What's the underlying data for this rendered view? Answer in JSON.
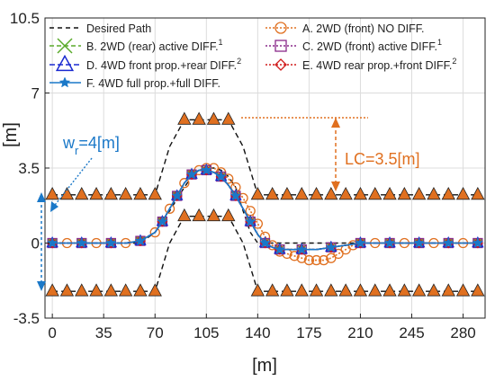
{
  "chart_data": {
    "type": "line",
    "xlabel": "[m]",
    "ylabel": "[m]",
    "xlim": [
      -5,
      295
    ],
    "ylim": [
      -3.5,
      10.5
    ],
    "xticks": [
      "0",
      "35",
      "70",
      "105",
      "140",
      "175",
      "210",
      "245",
      "280"
    ],
    "yticks": [
      "-3.5",
      "0",
      "3.5",
      "7",
      "10.5"
    ],
    "grid": true,
    "legend_position": "top",
    "cones": {
      "color": "#e07020",
      "upper": {
        "x": [
          0,
          10,
          20,
          30,
          40,
          50,
          60,
          70,
          90,
          100,
          110,
          120,
          140,
          150,
          160,
          170,
          180,
          190,
          200,
          210,
          220,
          230,
          240,
          250,
          260,
          270,
          280,
          290
        ],
        "y": [
          2.25,
          2.25,
          2.25,
          2.25,
          2.25,
          2.25,
          2.25,
          2.25,
          5.75,
          5.75,
          5.75,
          5.75,
          2.25,
          2.25,
          2.25,
          2.25,
          2.25,
          2.25,
          2.25,
          2.25,
          2.25,
          2.25,
          2.25,
          2.25,
          2.25,
          2.25,
          2.25,
          2.25
        ]
      },
      "lower": {
        "x": [
          0,
          10,
          20,
          30,
          40,
          50,
          60,
          70,
          90,
          100,
          110,
          120,
          140,
          150,
          160,
          170,
          180,
          190,
          200,
          210,
          220,
          230,
          240,
          250,
          260,
          270,
          280,
          290
        ],
        "y": [
          -2.25,
          -2.25,
          -2.25,
          -2.25,
          -2.25,
          -2.25,
          -2.25,
          -2.25,
          1.25,
          1.25,
          1.25,
          1.25,
          -2.25,
          -2.25,
          -2.25,
          -2.25,
          -2.25,
          -2.25,
          -2.25,
          -2.25,
          -2.25,
          -2.25,
          -2.25,
          -2.25,
          -2.25,
          -2.25,
          -2.25,
          -2.25
        ]
      },
      "upper_dash": {
        "x": [
          0,
          70,
          80,
          90,
          120,
          130,
          140,
          290
        ],
        "y": [
          2.25,
          2.25,
          4.5,
          5.75,
          5.75,
          4.5,
          2.25,
          2.25
        ]
      },
      "lower_dash": {
        "x": [
          0,
          70,
          80,
          90,
          120,
          130,
          140,
          290
        ],
        "y": [
          -2.25,
          -2.25,
          0,
          1.25,
          1.25,
          0,
          -2.25,
          -2.25
        ]
      }
    },
    "series": [
      {
        "name": "Desired Path",
        "color": "#111111",
        "dash": "5,4",
        "marker": "none",
        "x": [
          0,
          60,
          70,
          80,
          90,
          95,
          100,
          105,
          110,
          115,
          120,
          125,
          130,
          135,
          140,
          290
        ],
        "y": [
          0,
          0,
          0.5,
          1.5,
          2.6,
          3.1,
          3.4,
          3.5,
          3.5,
          3.4,
          3.1,
          2.6,
          1.5,
          0.5,
          0,
          0
        ]
      },
      {
        "name": "A. 2WD (front) NO DIFF.",
        "color": "#e07020",
        "dash": "2,2",
        "marker": "circle",
        "x": [
          0,
          10,
          20,
          30,
          40,
          50,
          60,
          70,
          75,
          80,
          85,
          90,
          95,
          100,
          105,
          110,
          115,
          120,
          125,
          130,
          135,
          140,
          145,
          150,
          155,
          160,
          165,
          170,
          175,
          180,
          185,
          190,
          195,
          200,
          205,
          210,
          220,
          230,
          240,
          250,
          260,
          270,
          280,
          290
        ],
        "y": [
          0,
          0,
          0,
          0,
          0,
          0,
          0.1,
          0.5,
          1,
          1.6,
          2.2,
          2.8,
          3.2,
          3.4,
          3.5,
          3.5,
          3.3,
          3,
          2.6,
          2.1,
          1.5,
          0.9,
          0.3,
          -0.1,
          -0.4,
          -0.5,
          -0.6,
          -0.7,
          -0.8,
          -0.8,
          -0.8,
          -0.7,
          -0.5,
          -0.3,
          -0.1,
          0,
          0,
          0,
          0,
          0,
          0,
          0,
          0,
          0
        ]
      },
      {
        "name": "B. 2WD (rear) active DIFF.",
        "sup": "1",
        "color": "#5aaa2a",
        "dash": "5,3",
        "marker": "x",
        "x": [
          0,
          10,
          20,
          30,
          40,
          50,
          60,
          70,
          75,
          80,
          85,
          90,
          95,
          100,
          105,
          110,
          115,
          120,
          125,
          130,
          135,
          140,
          145,
          150,
          155,
          160,
          170,
          180,
          190,
          200,
          210,
          220,
          230,
          240,
          250,
          260,
          270,
          280,
          290
        ],
        "y": [
          0,
          0,
          0,
          0,
          0,
          0,
          0.1,
          0.5,
          1,
          1.6,
          2.2,
          2.8,
          3.2,
          3.4,
          3.4,
          3.3,
          3.1,
          2.7,
          2.2,
          1.6,
          1,
          0.4,
          0,
          -0.2,
          -0.3,
          -0.3,
          -0.3,
          -0.3,
          -0.2,
          -0.1,
          0,
          0,
          0,
          0,
          0,
          0,
          0,
          0,
          0
        ]
      },
      {
        "name": "C. 2WD (front) active DIFF.",
        "sup": "1",
        "color": "#8a2a8a",
        "dash": "2,2",
        "marker": "square",
        "x": [
          0,
          10,
          20,
          30,
          40,
          50,
          60,
          70,
          75,
          80,
          85,
          90,
          95,
          100,
          105,
          110,
          115,
          120,
          125,
          130,
          135,
          140,
          145,
          150,
          155,
          160,
          170,
          180,
          190,
          200,
          210,
          220,
          230,
          240,
          250,
          260,
          270,
          280,
          290
        ],
        "y": [
          0,
          0,
          0,
          0,
          0,
          0,
          0.1,
          0.5,
          1,
          1.6,
          2.2,
          2.8,
          3.2,
          3.4,
          3.4,
          3.3,
          3.1,
          2.7,
          2.2,
          1.6,
          1,
          0.4,
          0,
          -0.2,
          -0.3,
          -0.3,
          -0.3,
          -0.3,
          -0.2,
          -0.1,
          0,
          0,
          0,
          0,
          0,
          0,
          0,
          0,
          0
        ]
      },
      {
        "name": "D. 4WD front prop.+rear DIFF.",
        "sup": "2",
        "color": "#1a2ad0",
        "dash": "6,3",
        "marker": "triangle",
        "x": [
          0,
          10,
          20,
          30,
          40,
          50,
          60,
          70,
          75,
          80,
          85,
          90,
          95,
          100,
          105,
          110,
          115,
          120,
          125,
          130,
          135,
          140,
          145,
          150,
          155,
          160,
          170,
          180,
          190,
          200,
          210,
          220,
          230,
          240,
          250,
          260,
          270,
          280,
          290
        ],
        "y": [
          0,
          0,
          0,
          0,
          0,
          0,
          0.1,
          0.5,
          1,
          1.6,
          2.2,
          2.8,
          3.2,
          3.4,
          3.4,
          3.3,
          3.1,
          2.7,
          2.2,
          1.6,
          1,
          0.4,
          0,
          -0.2,
          -0.3,
          -0.3,
          -0.3,
          -0.3,
          -0.2,
          -0.1,
          0,
          0,
          0,
          0,
          0,
          0,
          0,
          0,
          0
        ]
      },
      {
        "name": "E. 4WD rear prop.+front DIFF.",
        "sup": "2",
        "color": "#d01a1a",
        "dash": "2,2",
        "marker": "diamond",
        "x": [
          0,
          10,
          20,
          30,
          40,
          50,
          60,
          70,
          75,
          80,
          85,
          90,
          95,
          100,
          105,
          110,
          115,
          120,
          125,
          130,
          135,
          140,
          145,
          150,
          155,
          160,
          170,
          180,
          190,
          200,
          210,
          220,
          230,
          240,
          250,
          260,
          270,
          280,
          290
        ],
        "y": [
          0,
          0,
          0,
          0,
          0,
          0,
          0.1,
          0.5,
          1,
          1.6,
          2.2,
          2.8,
          3.2,
          3.4,
          3.4,
          3.3,
          3.1,
          2.7,
          2.2,
          1.6,
          1,
          0.4,
          0,
          -0.2,
          -0.3,
          -0.3,
          -0.3,
          -0.3,
          -0.2,
          -0.1,
          0,
          0,
          0,
          0,
          0,
          0,
          0,
          0,
          0
        ]
      },
      {
        "name": "F. 4WD full prop.+full DIFF.",
        "color": "#1a78c8",
        "dash": "",
        "marker": "star",
        "x": [
          0,
          10,
          20,
          30,
          40,
          50,
          60,
          70,
          75,
          80,
          85,
          90,
          95,
          100,
          105,
          110,
          115,
          120,
          125,
          130,
          135,
          140,
          145,
          150,
          155,
          160,
          170,
          180,
          190,
          200,
          210,
          220,
          230,
          240,
          250,
          260,
          270,
          280,
          290
        ],
        "y": [
          0,
          0,
          0,
          0,
          0,
          0,
          0.1,
          0.5,
          1,
          1.6,
          2.2,
          2.8,
          3.2,
          3.4,
          3.4,
          3.3,
          3.1,
          2.7,
          2.2,
          1.6,
          1,
          0.4,
          0,
          -0.2,
          -0.3,
          -0.3,
          -0.3,
          -0.3,
          -0.2,
          -0.1,
          0,
          0,
          0,
          0,
          0,
          0,
          0,
          0,
          0
        ]
      }
    ],
    "annotations": {
      "lane_width": {
        "main": "w",
        "sub": "r",
        "rest": "=4[m]",
        "color": "#1a78c8"
      },
      "lane_change": {
        "text": "LC=3.5[m]",
        "color": "#e07020"
      }
    }
  }
}
